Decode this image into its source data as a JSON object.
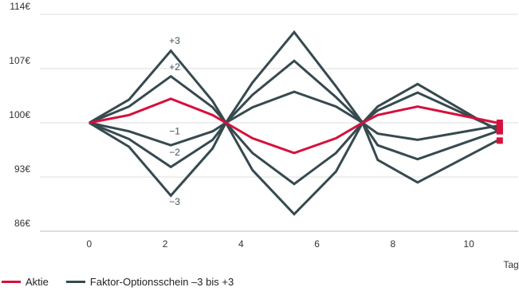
{
  "colors": {
    "aktie": "#d6103c",
    "schein": "#364a4f",
    "grid": "#dddddd",
    "axis": "#bbbbbb"
  },
  "chart_data": {
    "type": "line",
    "xlabel": "Tag",
    "ylabel": "",
    "xlim": [
      -1.3,
      11.3
    ],
    "ylim": [
      86,
      114
    ],
    "xticks": [
      {
        "value": 0,
        "label": "0"
      },
      {
        "value": 2,
        "label": "2"
      },
      {
        "value": 4,
        "label": "4"
      },
      {
        "value": 6,
        "label": "6"
      },
      {
        "value": 8,
        "label": "8"
      },
      {
        "value": 10,
        "label": "10"
      }
    ],
    "yticks": [
      {
        "value": 86,
        "label": "86€"
      },
      {
        "value": 93,
        "label": "93€"
      },
      {
        "value": 100,
        "label": "100€"
      },
      {
        "value": 107,
        "label": "107€"
      },
      {
        "value": 114,
        "label": "114€"
      }
    ],
    "x": [
      0,
      1.05,
      2.15,
      3.25,
      3.6,
      4.3,
      5.4,
      6.5,
      7.2,
      7.6,
      8.65,
      10.75
    ],
    "series": [
      {
        "name": "Aktie",
        "kind": "aktie",
        "values": [
          100,
          101,
          103.1,
          101,
          100,
          98,
          96.1,
          98,
          100,
          101,
          102.1,
          100
        ]
      },
      {
        "kind": "schein",
        "values": [
          100,
          103,
          109.3,
          102.8,
          100,
          105.2,
          111.7,
          104.7,
          100,
          102.1,
          105,
          99
        ]
      },
      {
        "kind": "schein",
        "values": [
          100,
          102.1,
          106,
          102,
          100,
          103.6,
          108,
          103.3,
          100,
          101.6,
          103.9,
          99.2
        ]
      },
      {
        "kind": "schein",
        "values": [
          100,
          98.9,
          97.1,
          98.9,
          100,
          102,
          104,
          102.1,
          100,
          98.6,
          97.8,
          99.6
        ]
      },
      {
        "kind": "schein",
        "values": [
          100,
          97.9,
          94.3,
          97.8,
          100,
          96.1,
          92.1,
          96.1,
          100,
          97.1,
          95.3,
          98.9
        ]
      },
      {
        "kind": "schein",
        "values": [
          100,
          96.9,
          90.6,
          96.7,
          100,
          93.9,
          88.2,
          93.7,
          100,
          95.2,
          92.3,
          97.7
        ]
      }
    ],
    "annotations": [
      {
        "text": "+3",
        "x": 2.25,
        "y": 110.2
      },
      {
        "text": "+2",
        "x": 2.25,
        "y": 106.8
      },
      {
        "text": "−1",
        "x": 2.25,
        "y": 98.5
      },
      {
        "text": "−2",
        "x": 2.25,
        "y": 95.8
      },
      {
        "text": "−3",
        "x": 2.25,
        "y": 89.4
      }
    ],
    "legend": [
      {
        "label": "Aktie",
        "kind": "aktie"
      },
      {
        "label": "Faktor-Optionsschein –3 bis +3",
        "kind": "schein"
      }
    ],
    "grid": "horizontal",
    "legend_position": "bottom-left"
  }
}
